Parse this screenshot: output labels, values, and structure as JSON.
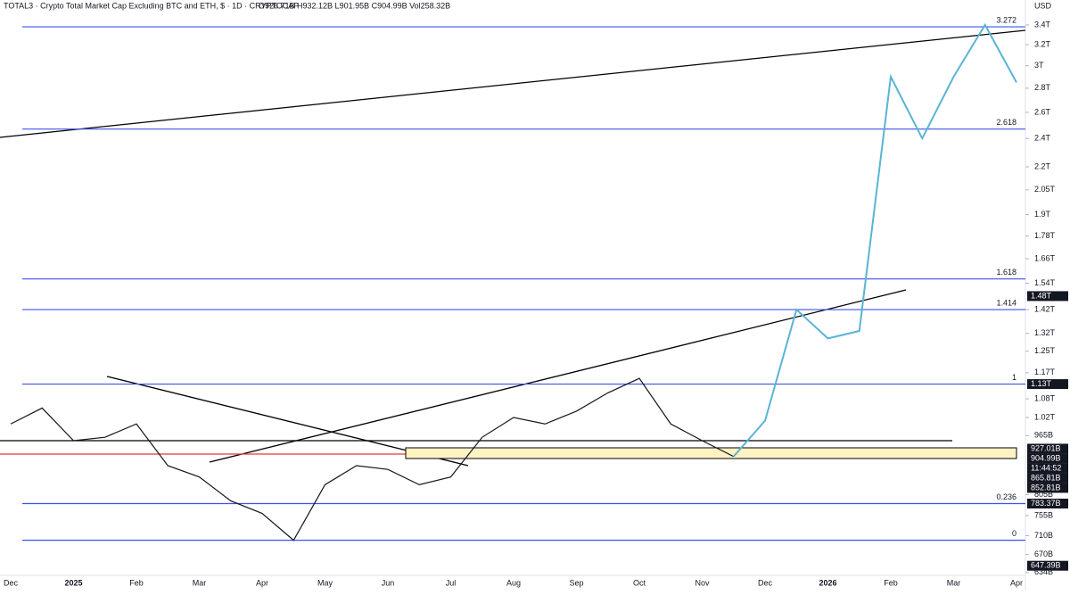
{
  "header": {
    "symbol": "TOTAL3 · Crypto Total Market Cap Excluding BTC and ETH, $ · 1D · CRYPTOCAP",
    "ohlc": "O926.71B H932.12B L901.95B C904.99B Vol258.32B",
    "currency": "USD"
  },
  "chart_data": {
    "type": "line",
    "log_scale": true,
    "categories": [
      "Dec",
      null,
      "2025",
      null,
      "Feb",
      null,
      "Mar",
      null,
      "Apr",
      null,
      "May",
      null,
      "Jun",
      null,
      "Jul",
      null,
      "Aug",
      null,
      "Sep",
      null,
      "Oct",
      null,
      "Nov",
      null,
      "Dec",
      null,
      "2026",
      null,
      "Feb",
      null,
      "Mar",
      null,
      "Apr"
    ],
    "series": [
      {
        "name": "Price",
        "color": "#131722",
        "values": [
          1000,
          1050,
          950,
          960,
          1000,
          880,
          850,
          790,
          760,
          700,
          830,
          880,
          870,
          830,
          850,
          960,
          1020,
          1000,
          1040,
          1100,
          1150,
          1000,
          950,
          905,
          null,
          null,
          null,
          null,
          null,
          null,
          null,
          null,
          null
        ]
      },
      {
        "name": "Projection",
        "color": "#5ab4d6",
        "values": [
          null,
          null,
          null,
          null,
          null,
          null,
          null,
          null,
          null,
          null,
          null,
          null,
          null,
          null,
          null,
          null,
          null,
          null,
          null,
          null,
          null,
          null,
          null,
          905,
          1010,
          1420,
          1300,
          1330,
          2900,
          2400,
          2900,
          3400,
          2850
        ]
      }
    ],
    "ylim": [
      620,
      3600
    ],
    "yticks": [
      {
        "value": 3400,
        "label": "3.4T"
      },
      {
        "value": 3200,
        "label": "3.2T"
      },
      {
        "value": 3000,
        "label": "3T"
      },
      {
        "value": 2800,
        "label": "2.8T"
      },
      {
        "value": 2600,
        "label": "2.6T"
      },
      {
        "value": 2400,
        "label": "2.4T"
      },
      {
        "value": 2200,
        "label": "2.2T"
      },
      {
        "value": 2050,
        "label": "2.05T"
      },
      {
        "value": 1900,
        "label": "1.9T"
      },
      {
        "value": 1780,
        "label": "1.78T"
      },
      {
        "value": 1660,
        "label": "1.66T"
      },
      {
        "value": 1540,
        "label": "1.54T"
      },
      {
        "value": 1420,
        "label": "1.42T"
      },
      {
        "value": 1320,
        "label": "1.32T"
      },
      {
        "value": 1250,
        "label": "1.25T"
      },
      {
        "value": 1170,
        "label": "1.17T"
      },
      {
        "value": 1080,
        "label": "1.08T"
      },
      {
        "value": 1020,
        "label": "1.02T"
      },
      {
        "value": 965,
        "label": "965B"
      },
      {
        "value": 805,
        "label": "805B"
      },
      {
        "value": 755,
        "label": "755B"
      },
      {
        "value": 710,
        "label": "710B"
      },
      {
        "value": 670,
        "label": "670B"
      },
      {
        "value": 634,
        "label": "634B"
      }
    ],
    "fib_levels": [
      {
        "ratio": "3.272",
        "price": 3380
      },
      {
        "ratio": "2.618",
        "price": 2470
      },
      {
        "ratio": "1.618",
        "price": 1560
      },
      {
        "ratio": "1.414",
        "price": 1420
      },
      {
        "ratio": "1",
        "price": 1130
      },
      {
        "ratio": "0.236",
        "price": 783.37
      },
      {
        "ratio": "0",
        "price": 700
      }
    ],
    "fib_color": "#3f51e8",
    "badges": [
      {
        "value": 1480,
        "label": "1.48T"
      },
      {
        "value": 1130,
        "label": "1.13T"
      },
      {
        "value": 927.01,
        "label": "927.01B"
      },
      {
        "value": 904.99,
        "label": "904.99B"
      },
      {
        "value": 865.81,
        "label": "865.81B"
      },
      {
        "value": 852.81,
        "label": "852.81B"
      },
      {
        "value": 783.37,
        "label": "783.37B"
      },
      {
        "value": 647.39,
        "label": "647.39B"
      }
    ],
    "countdown": "11:44:52"
  }
}
